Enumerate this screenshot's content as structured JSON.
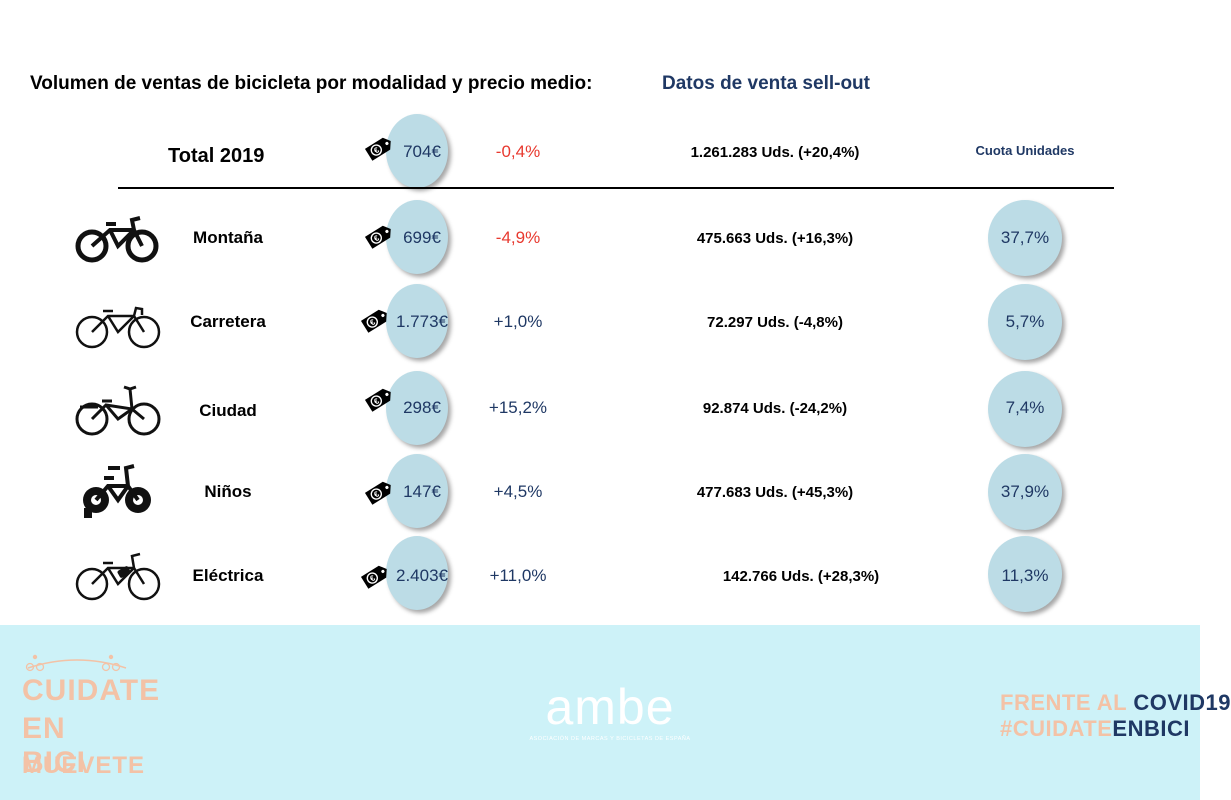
{
  "heading": "Volumen de ventas de bicicleta por modalidad y precio medio:",
  "subheading": "Datos de venta sell-out",
  "total": {
    "label": "Total 2019",
    "price": "704€",
    "change": "-0,4%",
    "units": "1.261.283 Uds. (+20,4%)",
    "share_header": "Cuota Unidades"
  },
  "rows": [
    {
      "label": "Montaña",
      "icon": "mountain-bike-icon",
      "price": "699€",
      "change": "-4,9%",
      "units": "475.663 Uds. (+16,3%)",
      "share": "37,7%"
    },
    {
      "label": "Carretera",
      "icon": "road-bike-icon",
      "price": "1.773€",
      "change": "+1,0%",
      "units": "72.297 Uds. (-4,8%)",
      "share": "5,7%"
    },
    {
      "label": "Ciudad",
      "icon": "city-bike-icon",
      "price": "298€",
      "change": "+15,2%",
      "units": "92.874 Uds. (-24,2%)",
      "share": "7,4%"
    },
    {
      "label": "Niños",
      "icon": "kids-bike-icon",
      "price": "147€",
      "change": "+4,5%",
      "units": "477.683 Uds. (+45,3%)",
      "share": "37,9%"
    },
    {
      "label": "Eléctrica",
      "icon": "electric-bike-icon",
      "price": "2.403€",
      "change": "+11,0%",
      "units": "142.766 Uds. (+28,3%)",
      "share": "11,3%"
    }
  ],
  "colors": {
    "negative": "#e8392f",
    "positive": "#1f3864",
    "circle": "#bcdce6",
    "footer": "#cdf2f8",
    "peach": "#f3c2a6"
  },
  "footer": {
    "left_logo": [
      "CUIDATE",
      "EN BICI",
      "MUEVETE"
    ],
    "brand": "ambe",
    "brand_sub": "ASOCIACIÓN DE MARCAS Y BICICLETAS DE ESPAÑA",
    "right_logo": {
      "line1_a": "FRENTE AL ",
      "line1_b": "COVID19",
      "line2_a": "#CUIDATE",
      "line2_b": "ENBICI"
    }
  }
}
